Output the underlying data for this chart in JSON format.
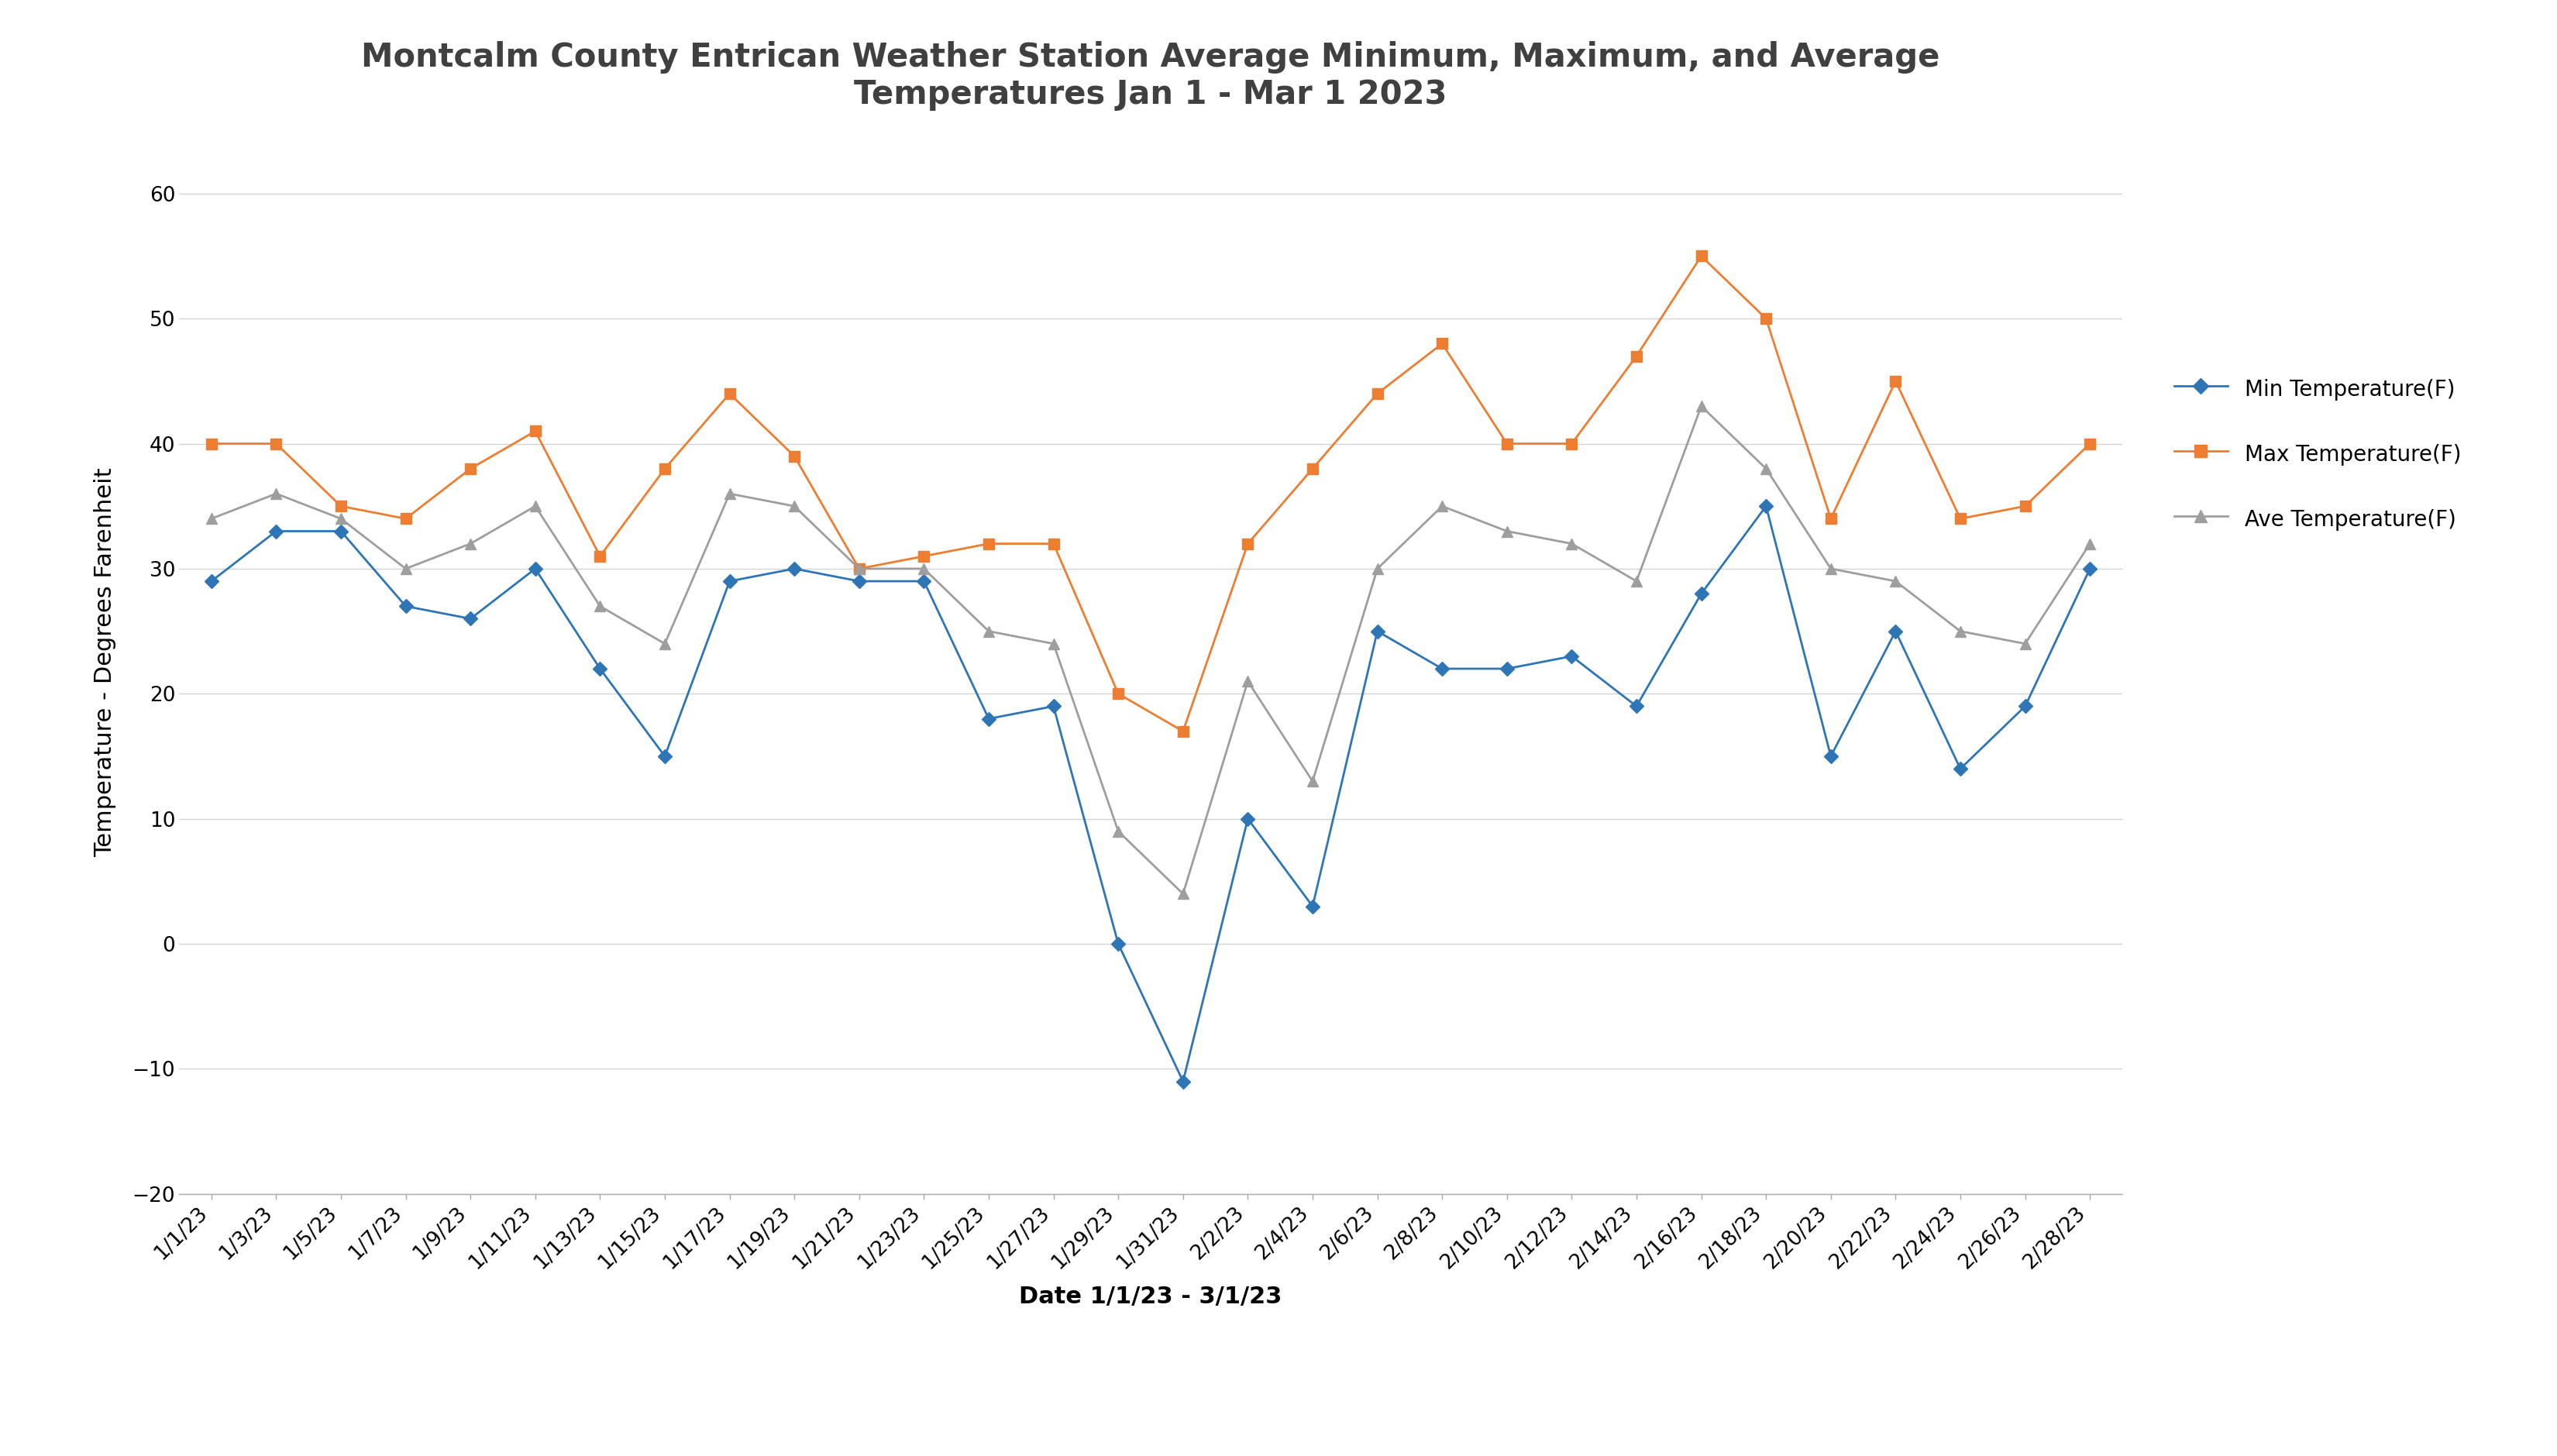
{
  "title": "Montcalm County Entrican Weather Station Average Minimum, Maximum, and Average\nTemperatures Jan 1 - Mar 1 2023",
  "xlabel": "Date 1/1/23 - 3/1/23",
  "ylabel": "Temperature - Degrees Farenheit",
  "dates": [
    "1/1/23",
    "1/3/23",
    "1/5/23",
    "1/7/23",
    "1/9/23",
    "1/11/23",
    "1/13/23",
    "1/15/23",
    "1/17/23",
    "1/19/23",
    "1/21/23",
    "1/23/23",
    "1/25/23",
    "1/27/23",
    "1/29/23",
    "1/31/23",
    "2/2/23",
    "2/4/23",
    "2/6/23",
    "2/8/23",
    "2/10/23",
    "2/12/23",
    "2/14/23",
    "2/16/23",
    "2/18/23",
    "2/20/23",
    "2/22/23",
    "2/24/23",
    "2/26/23",
    "2/28/23"
  ],
  "min_temp": [
    29,
    33,
    33,
    27,
    26,
    30,
    22,
    15,
    29,
    30,
    29,
    29,
    18,
    19,
    0,
    -11,
    10,
    3,
    25,
    22,
    22,
    23,
    19,
    28,
    35,
    15,
    25,
    14,
    19,
    30
  ],
  "max_temp": [
    40,
    40,
    35,
    34,
    38,
    41,
    31,
    38,
    44,
    39,
    30,
    31,
    32,
    32,
    20,
    17,
    32,
    38,
    44,
    48,
    40,
    40,
    47,
    55,
    50,
    34,
    45,
    34,
    35,
    40
  ],
  "ave_temp": [
    34,
    36,
    34,
    30,
    32,
    35,
    27,
    24,
    36,
    35,
    30,
    30,
    25,
    24,
    9,
    4,
    21,
    13,
    30,
    35,
    33,
    32,
    29,
    43,
    38,
    30,
    29,
    25,
    24,
    32
  ],
  "min_color": "#2E75B6",
  "max_color": "#ED7D31",
  "ave_color": "#9E9E9E",
  "ylim_min": -20,
  "ylim_max": 65,
  "yticks": [
    -20,
    -10,
    0,
    10,
    20,
    30,
    40,
    50,
    60
  ],
  "background_color": "#ffffff",
  "grid_color": "#d3d3d3",
  "title_color": "#404040",
  "title_fontsize": 30,
  "axis_label_fontsize": 22,
  "tick_fontsize": 19,
  "legend_fontsize": 20
}
